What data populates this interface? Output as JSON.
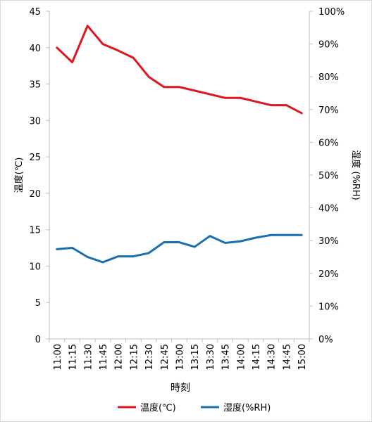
{
  "chart_data": {
    "type": "line",
    "x": [
      "11:00",
      "11:15",
      "11:30",
      "11:45",
      "12:00",
      "12:15",
      "12:30",
      "12:45",
      "13:00",
      "13:15",
      "13:30",
      "13:45",
      "14:00",
      "14:15",
      "14:30",
      "14:45",
      "15:00"
    ],
    "xlabel": "時刻",
    "ylabel": "温度(℃)",
    "y2label": "湿度 (%RH)",
    "ylim": [
      0,
      45
    ],
    "y2lim": [
      0,
      100
    ],
    "y_ticks": [
      0,
      5,
      10,
      15,
      20,
      25,
      30,
      35,
      40,
      45
    ],
    "y2_ticks": [
      "0%",
      "10%",
      "20%",
      "30%",
      "40%",
      "50%",
      "60%",
      "70%",
      "80%",
      "90%",
      "100%"
    ],
    "grid": false,
    "legend_position": "bottom",
    "series": [
      {
        "name": "温度(℃)",
        "axis": "left",
        "color": "#e0161e",
        "values": [
          40,
          38,
          43,
          40.5,
          39.6,
          38.6,
          36,
          34.6,
          34.6,
          34.1,
          33.6,
          33.1,
          33.1,
          32.6,
          32.1,
          32.1,
          31
        ]
      },
      {
        "name": "湿度(%RH)",
        "axis": "right",
        "color": "#1a6fae",
        "values": [
          27.4,
          27.8,
          25,
          23.4,
          25.2,
          25.2,
          26.2,
          29.5,
          29.5,
          28.1,
          31.4,
          29.3,
          29.8,
          30.9,
          31.7,
          31.7,
          31.7
        ]
      }
    ]
  }
}
